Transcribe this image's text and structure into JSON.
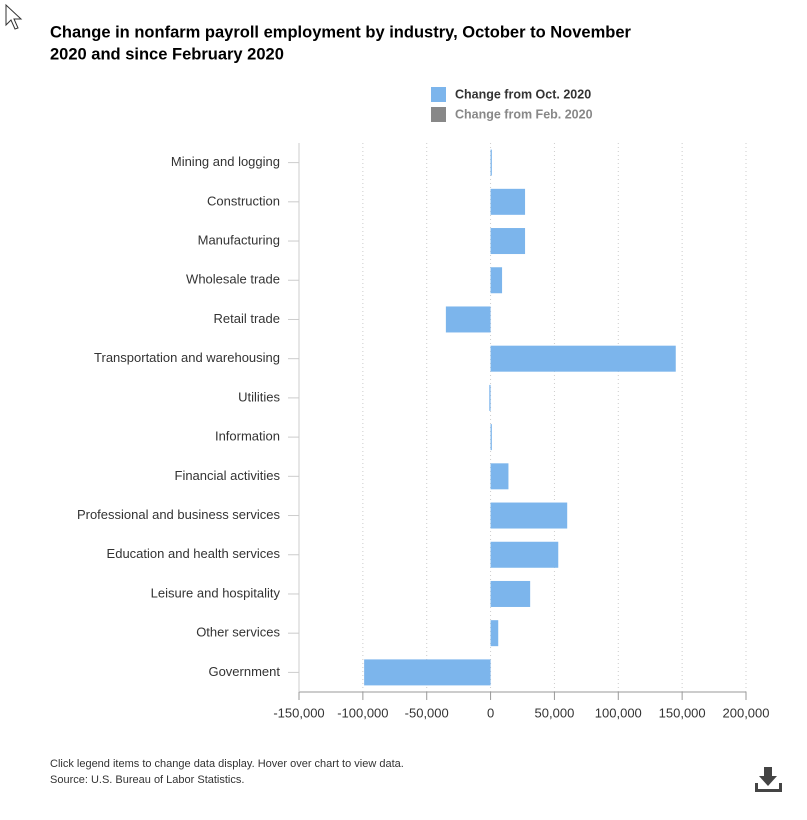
{
  "chart_data": {
    "type": "bar",
    "orientation": "horizontal",
    "title_lines": [
      "Change in nonfarm payroll employment by industry, October to November",
      "2020 and since February 2020"
    ],
    "categories": [
      "Mining and logging",
      "Construction",
      "Manufacturing",
      "Wholesale trade",
      "Retail trade",
      "Transportation and warehousing",
      "Utilities",
      "Information",
      "Financial activities",
      "Professional and business services",
      "Education and health services",
      "Leisure and hospitality",
      "Other services",
      "Government"
    ],
    "series": [
      {
        "name": "Change from Oct. 2020",
        "color": "#7cb5ec",
        "values": [
          1000,
          27000,
          27000,
          9000,
          -35000,
          145000,
          -1000,
          1000,
          14000,
          60000,
          53000,
          31000,
          6000,
          -99000
        ]
      }
    ],
    "hidden_legend_items": [
      {
        "name": "Change from Feb. 2020",
        "color": "#888888"
      }
    ],
    "xlim": [
      -150000,
      200000
    ],
    "xticks": [
      {
        "value": -150000,
        "label": "-150,000"
      },
      {
        "value": -100000,
        "label": "-100,000"
      },
      {
        "value": -50000,
        "label": "-50,000"
      },
      0,
      {
        "value": 50000,
        "label": "50,000"
      },
      {
        "value": 100000,
        "label": "100,000"
      },
      {
        "value": 150000,
        "label": "150,000"
      },
      {
        "value": 200000,
        "label": "200,000"
      }
    ],
    "grid": true,
    "notes": [
      "Click legend items to change data display. Hover over chart to view data.",
      "Source: U.S. Bureau of Labor Statistics."
    ]
  }
}
